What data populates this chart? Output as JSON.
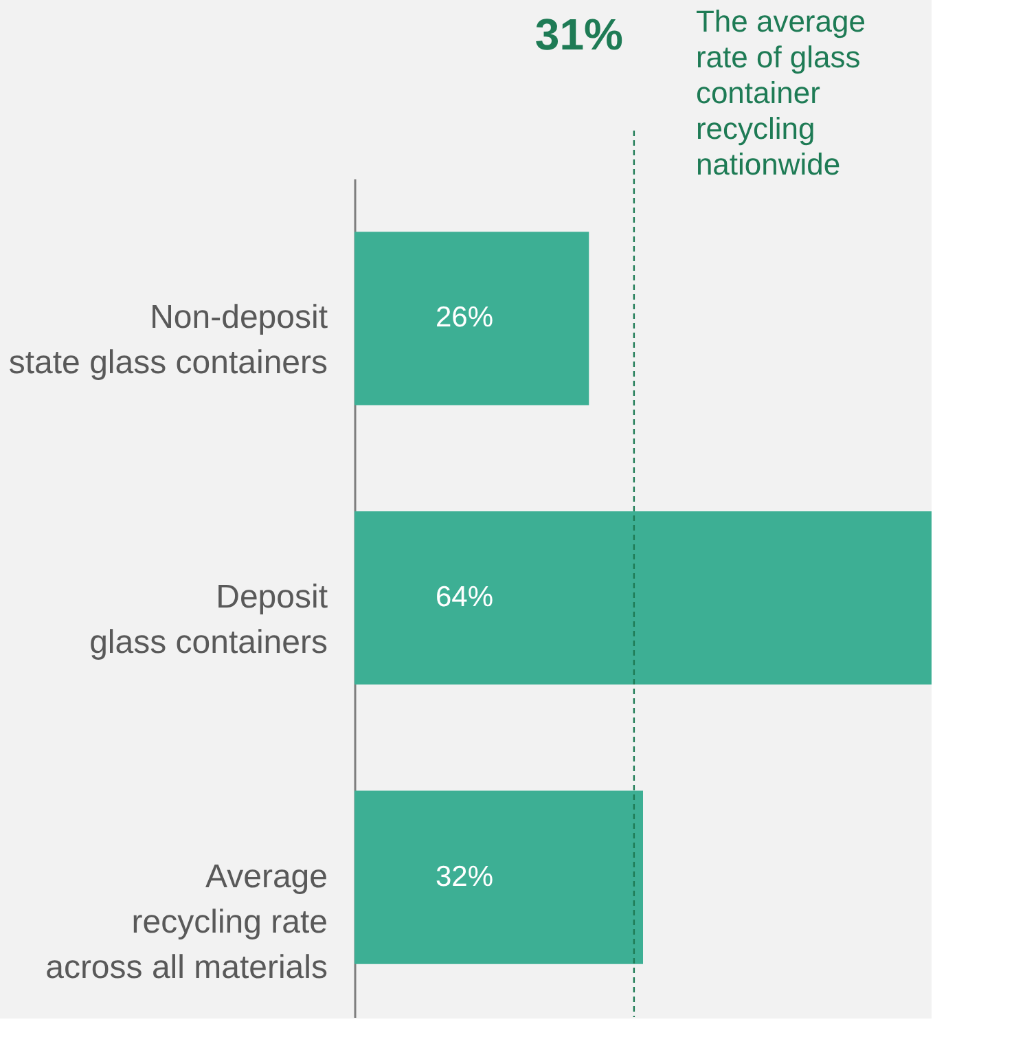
{
  "chart_data": {
    "type": "bar",
    "orientation": "horizontal",
    "categories": [
      "Non-deposit\nstate glass containers",
      "Deposit\nglass containers",
      "Average\nrecycling rate\nacross all materials"
    ],
    "values": [
      26,
      64,
      32
    ],
    "color": "#3daf94",
    "value_labels": [
      "26%",
      "64%",
      "32%"
    ],
    "xlim": [
      0,
      64
    ],
    "tick_labels": "y",
    "grid": false,
    "ref_lines": [
      {
        "axis": "x",
        "value": 31,
        "label": "31%",
        "color": "#1e7b55",
        "line_style": "dashed"
      }
    ],
    "annotations": [
      "The average\nrate of glass\ncontainer\nrecycling\nnationwide"
    ]
  }
}
